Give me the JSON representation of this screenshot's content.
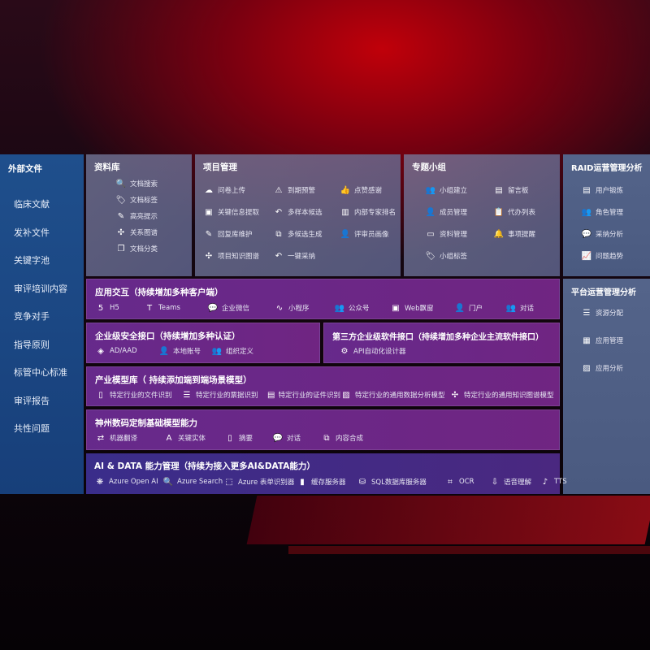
{
  "sidebar": {
    "title": "外部文件",
    "items": [
      "临床文献",
      "发补文件",
      "关键字池",
      "审评培训内容",
      "竞争对手",
      "指导原则",
      "标管中心标准",
      "审评报告",
      "共性问题"
    ]
  },
  "library": {
    "title": "资料库",
    "items": [
      {
        "icon": "doc-search",
        "label": "文档搜索"
      },
      {
        "icon": "tag",
        "label": "文档标签"
      },
      {
        "icon": "pen",
        "label": "高亮提示"
      },
      {
        "icon": "graph",
        "label": "关系图谱"
      },
      {
        "icon": "doc-stack",
        "label": "文档分类"
      }
    ]
  },
  "project": {
    "title": "项目管理",
    "items": [
      {
        "icon": "cloud-upload",
        "label": "问卷上传"
      },
      {
        "icon": "alarm",
        "label": "到期预警"
      },
      {
        "icon": "thumbs-up",
        "label": "点赞感谢"
      },
      {
        "icon": "window",
        "label": "关键信息提取"
      },
      {
        "icon": "reply",
        "label": "多样本候选"
      },
      {
        "icon": "ranking",
        "label": "内部专家排名"
      },
      {
        "icon": "pen",
        "label": "回复库维护"
      },
      {
        "icon": "puzzle",
        "label": "多候选生成"
      },
      {
        "icon": "user",
        "label": "评审员画像"
      },
      {
        "icon": "graph",
        "label": "项目知识图谱"
      },
      {
        "icon": "reply",
        "label": "一键采纳"
      }
    ]
  },
  "group": {
    "title": "专题小组",
    "items": [
      {
        "icon": "users",
        "label": "小组建立"
      },
      {
        "icon": "bbs",
        "label": "留言板"
      },
      {
        "icon": "user-add",
        "label": "成员管理"
      },
      {
        "icon": "clipboard",
        "label": "代办列表"
      },
      {
        "icon": "folder",
        "label": "资料管理"
      },
      {
        "icon": "bell",
        "label": "事项提醒"
      },
      {
        "icon": "tag",
        "label": "小组标签"
      }
    ]
  },
  "raid": {
    "title": "RAID运营管理分析",
    "items": [
      {
        "icon": "id-card",
        "label": "用户锻炼"
      },
      {
        "icon": "users",
        "label": "角色管理"
      },
      {
        "icon": "qa",
        "label": "采纳分析"
      },
      {
        "icon": "trend",
        "label": "问题趋势"
      }
    ]
  },
  "platform": {
    "title": "平台运营管理分析",
    "items": [
      {
        "icon": "list",
        "label": "资源分配"
      },
      {
        "icon": "apps",
        "label": "应用管理"
      },
      {
        "icon": "chart",
        "label": "应用分析"
      }
    ]
  },
  "interaction": {
    "title": "应用交互（持续增加多种客户端）",
    "items": [
      {
        "icon": "html5",
        "label": "H5"
      },
      {
        "icon": "teams",
        "label": "Teams"
      },
      {
        "icon": "wechat",
        "label": "企业微信"
      },
      {
        "icon": "mini-program",
        "label": "小程序"
      },
      {
        "icon": "users",
        "label": "公众号"
      },
      {
        "icon": "window",
        "label": "Web飘窗"
      },
      {
        "icon": "user",
        "label": "门户"
      },
      {
        "icon": "chat-users",
        "label": "对话"
      }
    ]
  },
  "security": {
    "title": "企业级安全接口（持续增加多种认证）",
    "items": [
      {
        "icon": "diamond",
        "label": "AD/AAD"
      },
      {
        "icon": "user-lock",
        "label": "本地账号"
      },
      {
        "icon": "org",
        "label": "组织定义"
      }
    ]
  },
  "thirdparty": {
    "title": "第三方企业级软件接口（持续增加多种企业主流软件接口）",
    "items": [
      {
        "icon": "gear",
        "label": "API自动化设计器"
      }
    ]
  },
  "industry": {
    "title": "产业模型库（ 持续添加端到端场景模型）",
    "items": [
      {
        "icon": "doc",
        "label": "特定行业的文件识别"
      },
      {
        "icon": "receipt",
        "label": "特定行业的票据识别"
      },
      {
        "icon": "id-card",
        "label": "特定行业的证件识别"
      },
      {
        "icon": "chart",
        "label": "特定行业的通用数据分析模型"
      },
      {
        "icon": "graph",
        "label": "特定行业的通用知识图谱模型"
      }
    ]
  },
  "foundation": {
    "title": "神州数码定制基础模型能力",
    "items": [
      {
        "icon": "translate",
        "label": "机器翻译"
      },
      {
        "icon": "entity",
        "label": "关键实体"
      },
      {
        "icon": "doc",
        "label": "摘要"
      },
      {
        "icon": "chat",
        "label": "对话"
      },
      {
        "icon": "puzzle",
        "label": "内容合成"
      }
    ]
  },
  "aidata": {
    "title": "AI & DATA 能力管理（持续为接入更多AI&DATA能力）",
    "items": [
      {
        "icon": "openai",
        "label": "Azure Open AI"
      },
      {
        "icon": "doc-search",
        "label": "Azure Search"
      },
      {
        "icon": "form",
        "label": "Azure 表单识别器"
      },
      {
        "icon": "cache",
        "label": "缓存服务器"
      },
      {
        "icon": "database",
        "label": "SQL数据库服务器"
      },
      {
        "icon": "ocr",
        "label": "OCR"
      },
      {
        "icon": "speech",
        "label": "语音理解"
      },
      {
        "icon": "tts",
        "label": "TTS"
      }
    ]
  },
  "colors": {
    "sidebar": "#1f4f8c",
    "purple": "#6e2d96",
    "navy": "#3a2d8a",
    "slate": "#54648a",
    "accent_red": "#c0000a"
  }
}
